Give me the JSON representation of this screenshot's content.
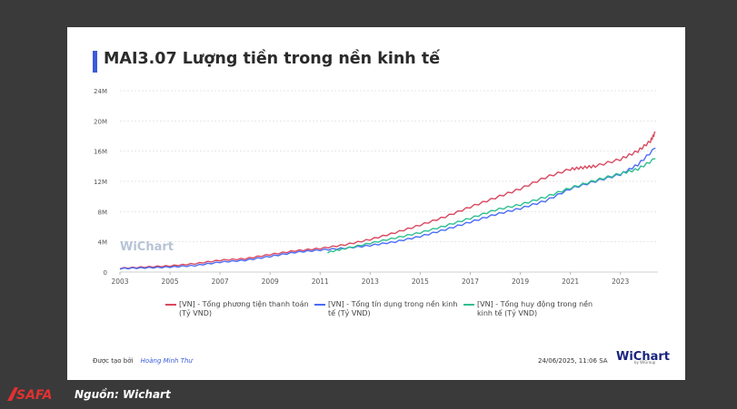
{
  "title": "MAI3.07 Lượng tiền trong nền kinh tế",
  "watermark": "WiChart",
  "credit": {
    "label": "Được tạo bởi",
    "author": "Hoàng Minh Thư"
  },
  "timestamp": "24/06/2025, 11:06 SA",
  "brand": {
    "name": "WiChart",
    "sub": "by WiGroup"
  },
  "footer": {
    "logo_text": "SAFA",
    "source": "Nguồn: Wichart"
  },
  "colors": {
    "money_supply": "#d9485f",
    "credit": "#4a6cf7",
    "deposits": "#2fbf8f",
    "accent": "#3b5bdb"
  },
  "chart_data": {
    "type": "line",
    "title": "MAI3.07 Lượng tiền trong nền kinh tế",
    "xlabel": "",
    "ylabel": "",
    "xlim": [
      2003,
      2024.5
    ],
    "ylim": [
      0,
      24
    ],
    "x_ticks": [
      "2003",
      "2005",
      "2007",
      "2009",
      "2011",
      "2013",
      "2015",
      "2017",
      "2019",
      "2021",
      "2023"
    ],
    "y_ticks": [
      "0",
      "4M",
      "8M",
      "12M",
      "16M",
      "20M",
      "24M"
    ],
    "grid": true,
    "legend_position": "bottom",
    "series": [
      {
        "name": "[VN] - Tổng phương tiện thanh toán (Tỷ VND)",
        "color": "#d9485f",
        "x": [
          2003,
          2004,
          2005,
          2006,
          2007,
          2008,
          2009,
          2010,
          2011,
          2012,
          2013,
          2014,
          2015,
          2016,
          2017,
          2018,
          2019,
          2020,
          2021,
          2021.5,
          2022,
          2023,
          2023.7,
          2024.2,
          2024.4
        ],
        "y": [
          0.5,
          0.65,
          0.8,
          1.1,
          1.55,
          1.75,
          2.3,
          2.8,
          3.1,
          3.6,
          4.3,
          5.2,
          6.2,
          7.3,
          8.6,
          9.8,
          11.0,
          12.5,
          13.6,
          13.8,
          14.0,
          14.9,
          16.0,
          17.3,
          18.5
        ]
      },
      {
        "name": "[VN] - Tổng tín dụng trong nền kinh tế (Tỷ VND)",
        "color": "#4a6cf7",
        "x": [
          2003,
          2004,
          2005,
          2006,
          2007,
          2008,
          2009,
          2010,
          2011,
          2012,
          2013,
          2014,
          2015,
          2016,
          2017,
          2018,
          2019,
          2020,
          2021,
          2022,
          2023,
          2023.7,
          2024.4
        ],
        "y": [
          0.45,
          0.55,
          0.65,
          0.85,
          1.3,
          1.55,
          2.05,
          2.6,
          2.9,
          3.15,
          3.5,
          4.0,
          4.7,
          5.6,
          6.6,
          7.6,
          8.4,
          9.4,
          11.0,
          12.0,
          12.9,
          14.2,
          16.4
        ]
      },
      {
        "name": "[VN] - Tổng huy động trong nền kinh tế (Tỷ VND)",
        "color": "#2fbf8f",
        "x": [
          2011.3,
          2012,
          2013,
          2014,
          2015,
          2016,
          2017,
          2018,
          2019,
          2020,
          2021,
          2022,
          2023,
          2023.7,
          2024.4
        ],
        "y": [
          2.6,
          3.1,
          3.8,
          4.5,
          5.2,
          6.1,
          7.1,
          8.2,
          8.9,
          9.9,
          11.1,
          12.1,
          13.0,
          13.6,
          15.0
        ]
      }
    ]
  }
}
